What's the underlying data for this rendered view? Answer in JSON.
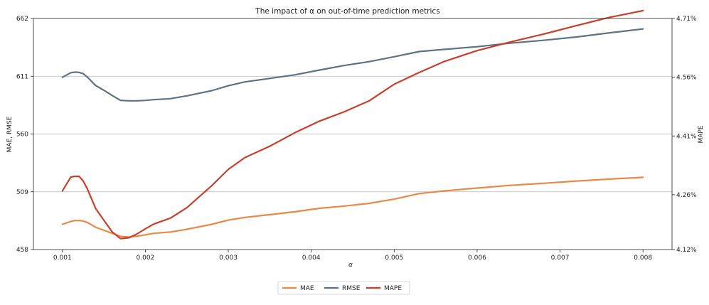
{
  "chart_data": {
    "type": "line",
    "title": "The impact of α on out-of-time prediction metrics",
    "xlabel": "α",
    "ylabel_left": "MAE, RMSE",
    "ylabel_right": "MAPE",
    "xlim": [
      0.00065,
      0.00835
    ],
    "ylim_left": [
      458,
      662
    ],
    "ylim_right": [
      4.12,
      4.71
    ],
    "x_ticks": [
      0.001,
      0.002,
      0.003,
      0.004,
      0.005,
      0.006,
      0.007,
      0.008
    ],
    "x_tick_labels": [
      "0.001",
      "0.002",
      "0.003",
      "0.004",
      "0.005",
      "0.006",
      "0.007",
      "0.008"
    ],
    "y_left_ticks": [
      458,
      509,
      560,
      611,
      662
    ],
    "y_left_tick_labels": [
      "458",
      "509",
      "560",
      "611",
      "662"
    ],
    "y_right_ticks": [
      4.12,
      4.26,
      4.41,
      4.56,
      4.71
    ],
    "y_right_tick_labels": [
      "4.12%",
      "4.26%",
      "4.41%",
      "4.56%",
      "4.71%"
    ],
    "grid": "horizontal",
    "legend_placement": "bottom-center",
    "series": [
      {
        "name": "MAE",
        "axis": "left",
        "color": "#e8894a",
        "x": [
          0.001,
          0.0011,
          0.00115,
          0.0012,
          0.00125,
          0.0013,
          0.0014,
          0.0015,
          0.0016,
          0.0017,
          0.0018,
          0.0019,
          0.002,
          0.0021,
          0.0023,
          0.0025,
          0.0028,
          0.003,
          0.0032,
          0.0035,
          0.0038,
          0.0041,
          0.0044,
          0.0047,
          0.005,
          0.0053,
          0.0056,
          0.006,
          0.0064,
          0.0068,
          0.0072,
          0.0076,
          0.008
        ],
        "y": [
          480.3,
          482.8,
          483.6,
          483.6,
          483.2,
          482.0,
          477.7,
          475.0,
          472.3,
          469.6,
          469.1,
          469.8,
          471.0,
          472.3,
          473.5,
          475.9,
          480.3,
          484.0,
          486.4,
          488.8,
          491.3,
          494.4,
          496.4,
          498.8,
          502.5,
          507.4,
          509.8,
          512.3,
          514.7,
          516.5,
          518.5,
          520.2,
          521.8
        ]
      },
      {
        "name": "RMSE",
        "axis": "left",
        "color": "#5f7282",
        "x": [
          0.001,
          0.0011,
          0.00115,
          0.0012,
          0.00125,
          0.0013,
          0.0014,
          0.0015,
          0.0016,
          0.0017,
          0.0018,
          0.0019,
          0.002,
          0.0021,
          0.0023,
          0.0025,
          0.0028,
          0.003,
          0.0032,
          0.0035,
          0.0038,
          0.0041,
          0.0044,
          0.0047,
          0.005,
          0.0053,
          0.0056,
          0.006,
          0.0064,
          0.0068,
          0.0072,
          0.0076,
          0.008
        ],
        "y": [
          610.1,
          614.1,
          614.7,
          614.4,
          613.3,
          610.3,
          602.9,
          598.6,
          594.0,
          589.7,
          589.3,
          589.3,
          589.7,
          590.3,
          591.2,
          593.7,
          598.3,
          602.6,
          606.0,
          609.1,
          612.2,
          616.5,
          620.5,
          623.9,
          628.2,
          632.8,
          634.7,
          637.1,
          640.2,
          642.7,
          645.7,
          649.4,
          652.8
        ]
      },
      {
        "name": "MAPE",
        "axis": "right",
        "color": "#c8402c",
        "x": [
          0.001,
          0.0011,
          0.00115,
          0.0012,
          0.00125,
          0.0013,
          0.0014,
          0.0015,
          0.0016,
          0.0017,
          0.0018,
          0.0019,
          0.002,
          0.0021,
          0.0023,
          0.0025,
          0.0028,
          0.003,
          0.0032,
          0.0035,
          0.0038,
          0.0041,
          0.0044,
          0.0047,
          0.005,
          0.0053,
          0.0056,
          0.006,
          0.0064,
          0.0068,
          0.0072,
          0.0076,
          0.008
        ],
        "y": [
          4.27,
          4.305,
          4.307,
          4.307,
          4.295,
          4.275,
          4.225,
          4.195,
          4.165,
          4.148,
          4.15,
          4.16,
          4.173,
          4.185,
          4.2,
          4.227,
          4.283,
          4.325,
          4.355,
          4.384,
          4.418,
          4.448,
          4.472,
          4.5,
          4.542,
          4.572,
          4.6,
          4.628,
          4.65,
          4.67,
          4.692,
          4.713,
          4.73
        ]
      }
    ]
  }
}
